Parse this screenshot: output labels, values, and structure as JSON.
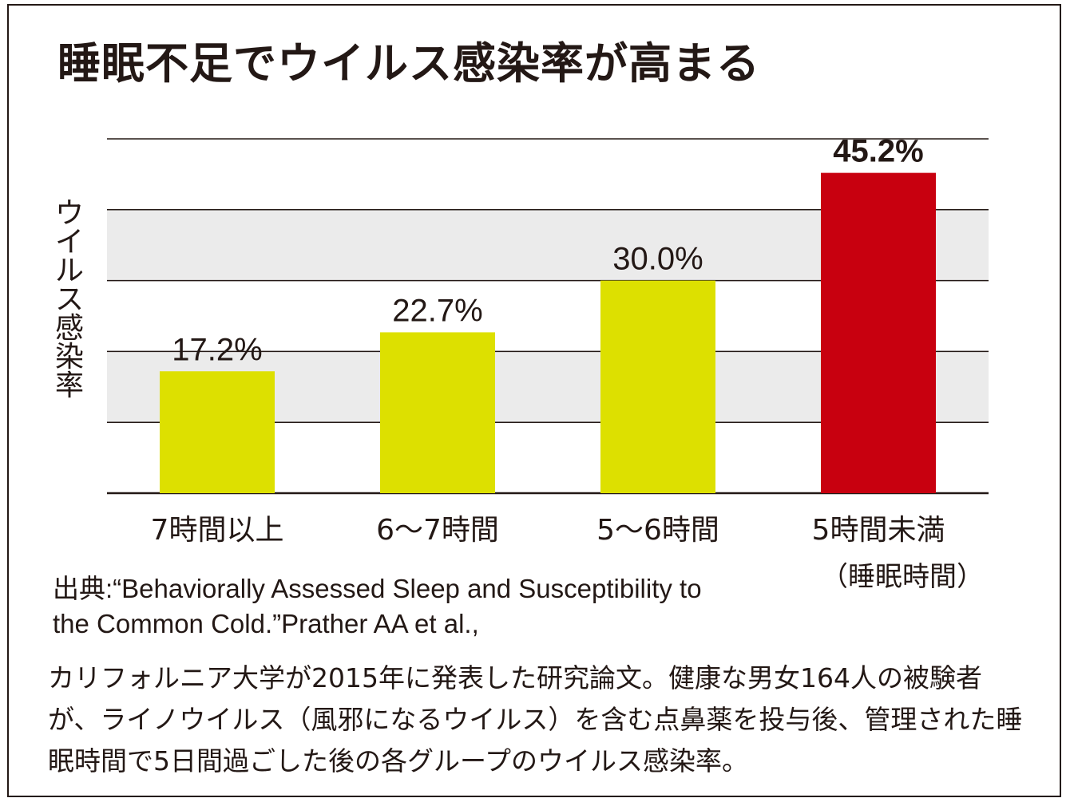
{
  "title": "睡眠不足でウイルス感染率が高まる",
  "chart_data": {
    "type": "bar",
    "ylabel": "ウイルス感染率",
    "xlabel": "",
    "categories": [
      "7時間以上",
      "6〜7時間",
      "5〜6時間",
      "5時間未満"
    ],
    "category_sub": [
      "",
      "",
      "",
      "（睡眠時間）"
    ],
    "values": [
      17.2,
      22.7,
      30.0,
      45.2
    ],
    "value_labels": [
      "17.2%",
      "22.7%",
      "30.0%",
      "45.2%"
    ],
    "colors": [
      "#dde000",
      "#dde000",
      "#dde000",
      "#c8000f"
    ],
    "ylim": [
      0,
      50
    ],
    "grid": true,
    "band_colors": [
      "#ffffff",
      "#ebebeb"
    ]
  },
  "source_lines": [
    "出典:“Behaviorally Assessed Sleep and Susceptibility to",
    "the Common Cold.”Prather AA et al.,"
  ],
  "description": "カリフォルニア大学が2015年に発表した研究論文。健康な男女164人の被験者が、ライノウイルス（風邪になるウイルス）を含む点鼻薬を投与後、管理された睡眠時間で5日間過ごした後の各グループのウイルス感染率。"
}
